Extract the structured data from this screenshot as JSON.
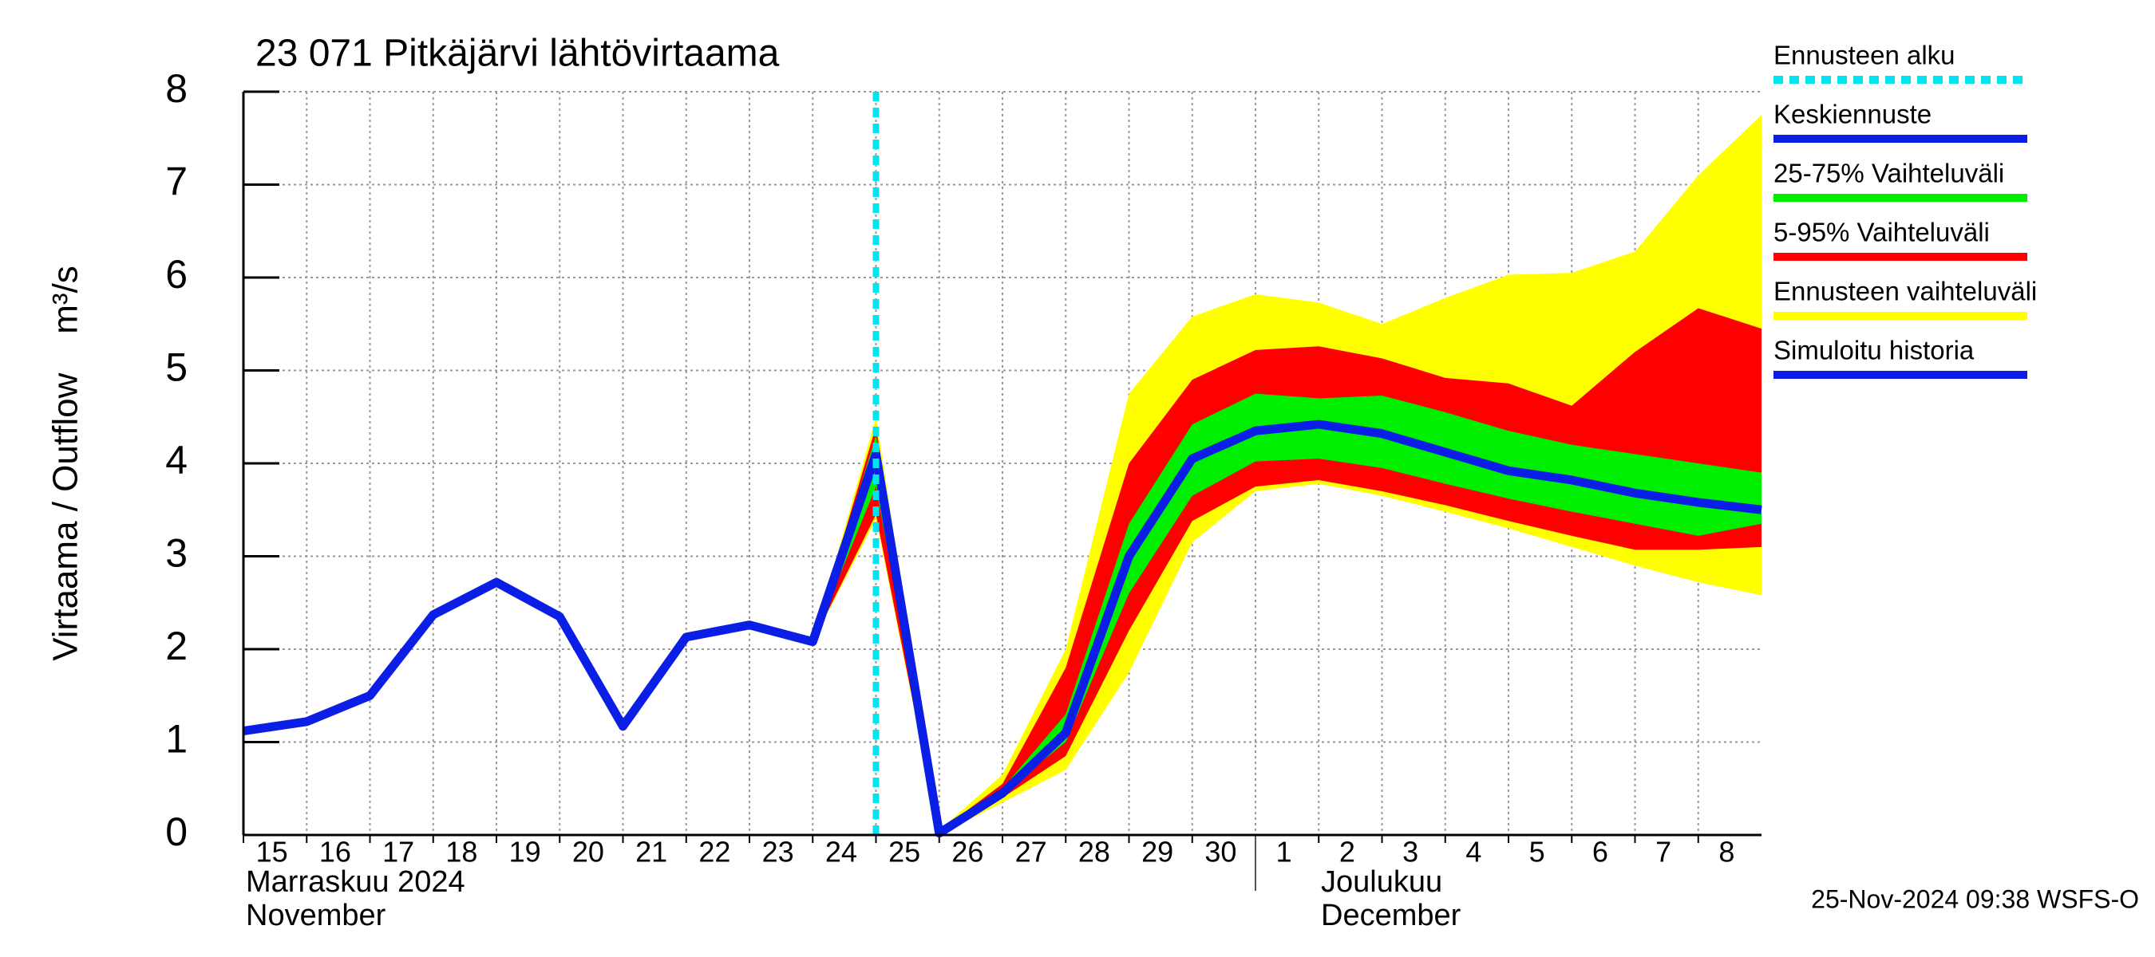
{
  "chart_data": {
    "type": "band-forecast",
    "title": "23 071 Pitkäjärvi lähtövirtaama",
    "y_label": "Virtaama / Outflow    m³/s",
    "month_labels": [
      "Marraskuu 2024",
      "November",
      "Joulukuu",
      "December"
    ],
    "footer": "25-Nov-2024 09:38 WSFS-O",
    "x": [
      "2024-11-15",
      "2024-11-16",
      "2024-11-17",
      "2024-11-18",
      "2024-11-19",
      "2024-11-20",
      "2024-11-21",
      "2024-11-22",
      "2024-11-23",
      "2024-11-24",
      "2024-11-25",
      "2024-11-26",
      "2024-11-27",
      "2024-11-28",
      "2024-11-29",
      "2024-11-30",
      "2024-12-01",
      "2024-12-02",
      "2024-12-03",
      "2024-12-04",
      "2024-12-05",
      "2024-12-06",
      "2024-12-07",
      "2024-12-08",
      "2024-12-09"
    ],
    "xlim": [
      "2024-11-15",
      "2024-12-09"
    ],
    "xticks": [
      {
        "value": "2024-11-15",
        "label": "15"
      },
      {
        "value": "2024-11-16",
        "label": "16"
      },
      {
        "value": "2024-11-17",
        "label": "17"
      },
      {
        "value": "2024-11-18",
        "label": "18"
      },
      {
        "value": "2024-11-19",
        "label": "19"
      },
      {
        "value": "2024-11-20",
        "label": "20"
      },
      {
        "value": "2024-11-21",
        "label": "21"
      },
      {
        "value": "2024-11-22",
        "label": "22"
      },
      {
        "value": "2024-11-23",
        "label": "23"
      },
      {
        "value": "2024-11-24",
        "label": "24"
      },
      {
        "value": "2024-11-25",
        "label": "25"
      },
      {
        "value": "2024-11-26",
        "label": "26"
      },
      {
        "value": "2024-11-27",
        "label": "27"
      },
      {
        "value": "2024-11-28",
        "label": "28"
      },
      {
        "value": "2024-11-29",
        "label": "29"
      },
      {
        "value": "2024-11-30",
        "label": "30"
      },
      {
        "value": "2024-12-01",
        "label": "1"
      },
      {
        "value": "2024-12-02",
        "label": "2"
      },
      {
        "value": "2024-12-03",
        "label": "3"
      },
      {
        "value": "2024-12-04",
        "label": "4"
      },
      {
        "value": "2024-12-05",
        "label": "5"
      },
      {
        "value": "2024-12-06",
        "label": "6"
      },
      {
        "value": "2024-12-07",
        "label": "7"
      },
      {
        "value": "2024-12-08",
        "label": "8"
      }
    ],
    "ylim": [
      0,
      8
    ],
    "yticks": [
      0,
      1,
      2,
      3,
      4,
      5,
      6,
      7,
      8
    ],
    "grid": true,
    "forecast_start": {
      "name": "Ennusteen alku",
      "x": "2024-11-25",
      "color": "#00e5ee"
    },
    "series": [
      {
        "name": "Keskiennuste",
        "color": "#0a1ee6",
        "values": [
          null,
          null,
          null,
          null,
          null,
          null,
          null,
          null,
          null,
          2.08,
          4.1,
          0.02,
          0.45,
          1.1,
          3.0,
          4.05,
          4.35,
          4.42,
          4.32,
          4.12,
          3.92,
          3.82,
          3.68,
          3.58,
          3.5
        ]
      },
      {
        "name": "25-75% Vaihteluväli",
        "color": "#00ee00",
        "low": [
          null,
          null,
          null,
          null,
          null,
          null,
          null,
          null,
          null,
          2.08,
          3.75,
          0.01,
          0.45,
          1.0,
          2.6,
          3.65,
          4.02,
          4.05,
          3.95,
          3.78,
          3.62,
          3.48,
          3.35,
          3.22,
          3.35
        ],
        "high": [
          null,
          null,
          null,
          null,
          null,
          null,
          null,
          null,
          null,
          2.08,
          4.3,
          0.03,
          0.5,
          1.3,
          3.35,
          4.42,
          4.75,
          4.7,
          4.73,
          4.55,
          4.35,
          4.2,
          4.1,
          4.0,
          3.9
        ]
      },
      {
        "name": "5-95% Vaihteluväli",
        "color": "#ff0000",
        "low": [
          null,
          null,
          null,
          null,
          null,
          null,
          null,
          null,
          null,
          2.08,
          3.45,
          0.0,
          0.4,
          0.85,
          2.2,
          3.38,
          3.75,
          3.82,
          3.7,
          3.55,
          3.38,
          3.22,
          3.07,
          3.07,
          3.1
        ],
        "high": [
          null,
          null,
          null,
          null,
          null,
          null,
          null,
          null,
          null,
          2.08,
          4.4,
          0.04,
          0.55,
          1.8,
          4.0,
          4.9,
          5.22,
          5.26,
          5.13,
          4.92,
          4.86,
          4.62,
          5.2,
          5.67,
          5.45
        ]
      },
      {
        "name": "Ennusteen vaihteluväli",
        "color": "#ffff00",
        "low": [
          null,
          null,
          null,
          null,
          null,
          null,
          null,
          null,
          null,
          2.08,
          3.4,
          0.0,
          0.35,
          0.7,
          1.75,
          3.15,
          3.7,
          3.78,
          3.65,
          3.48,
          3.3,
          3.1,
          2.9,
          2.72,
          2.58
        ],
        "high": [
          null,
          null,
          null,
          null,
          null,
          null,
          null,
          null,
          null,
          2.08,
          4.5,
          0.05,
          0.65,
          2.0,
          4.75,
          5.58,
          5.82,
          5.73,
          5.5,
          5.78,
          6.03,
          6.05,
          6.28,
          7.1,
          7.75
        ]
      },
      {
        "name": "Simuloitu historia",
        "color": "#0a1ee6",
        "values": [
          1.12,
          1.22,
          1.5,
          2.37,
          2.72,
          2.35,
          1.17,
          2.13,
          2.26,
          2.08,
          4.1,
          null,
          null,
          null,
          null,
          null,
          null,
          null,
          null,
          null,
          null,
          null,
          null,
          null,
          null
        ]
      }
    ]
  }
}
